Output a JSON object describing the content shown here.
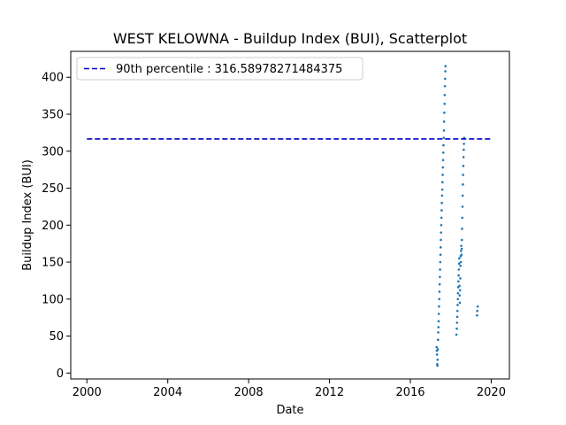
{
  "chart_data": {
    "type": "scatter",
    "title": "WEST KELOWNA - Buildup Index (BUI), Scatterplot",
    "xlabel": "Date",
    "ylabel": "Buildup Index (BUI)",
    "xlim": [
      1999.2,
      2020.9
    ],
    "ylim": [
      -8,
      435
    ],
    "xticks": [
      {
        "value": 2000,
        "label": "2000"
      },
      {
        "value": 2004,
        "label": "2004"
      },
      {
        "value": 2008,
        "label": "2008"
      },
      {
        "value": 2012,
        "label": "2012"
      },
      {
        "value": 2016,
        "label": "2016"
      },
      {
        "value": 2020,
        "label": "2020"
      }
    ],
    "yticks": [
      {
        "value": 0,
        "label": "0"
      },
      {
        "value": 50,
        "label": "50"
      },
      {
        "value": 100,
        "label": "100"
      },
      {
        "value": 150,
        "label": "150"
      },
      {
        "value": 200,
        "label": "200"
      },
      {
        "value": 250,
        "label": "250"
      },
      {
        "value": 300,
        "label": "300"
      },
      {
        "value": 350,
        "label": "350"
      },
      {
        "value": 400,
        "label": "400"
      }
    ],
    "grid": false,
    "legend": {
      "position": "top-left",
      "entries": [
        "90th percentile : 316.58978271484375"
      ]
    },
    "reference_line": {
      "value": 316.58978271484375,
      "x_range": [
        2000,
        2020
      ],
      "color": "#0000cc",
      "style": "dashed"
    },
    "marker_color": "#1f77b4",
    "series": [
      {
        "points": [
          [
            2017.3,
            35
          ],
          [
            2017.31,
            30
          ],
          [
            2017.32,
            25
          ],
          [
            2017.33,
            12
          ],
          [
            2017.34,
            10
          ],
          [
            2017.35,
            18
          ],
          [
            2017.36,
            32
          ],
          [
            2017.37,
            45
          ],
          [
            2017.38,
            55
          ],
          [
            2017.39,
            62
          ],
          [
            2017.4,
            70
          ],
          [
            2017.41,
            80
          ],
          [
            2017.42,
            90
          ],
          [
            2017.43,
            100
          ],
          [
            2017.44,
            110
          ],
          [
            2017.45,
            120
          ],
          [
            2017.46,
            130
          ],
          [
            2017.47,
            140
          ],
          [
            2017.48,
            150
          ],
          [
            2017.49,
            160
          ],
          [
            2017.5,
            170
          ],
          [
            2017.51,
            180
          ],
          [
            2017.52,
            190
          ],
          [
            2017.53,
            200
          ],
          [
            2017.54,
            210
          ],
          [
            2017.55,
            220
          ],
          [
            2017.56,
            230
          ],
          [
            2017.57,
            240
          ],
          [
            2017.58,
            248
          ],
          [
            2017.59,
            258
          ],
          [
            2017.6,
            268
          ],
          [
            2017.61,
            278
          ],
          [
            2017.62,
            288
          ],
          [
            2017.63,
            298
          ],
          [
            2017.64,
            308
          ],
          [
            2017.65,
            318
          ],
          [
            2017.66,
            328
          ],
          [
            2017.67,
            340
          ],
          [
            2017.68,
            352
          ],
          [
            2017.69,
            364
          ],
          [
            2017.7,
            376
          ],
          [
            2017.71,
            388
          ],
          [
            2017.72,
            398
          ],
          [
            2017.73,
            408
          ],
          [
            2017.74,
            415
          ],
          [
            2018.28,
            52
          ],
          [
            2018.3,
            60
          ],
          [
            2018.31,
            68
          ],
          [
            2018.32,
            76
          ],
          [
            2018.33,
            84
          ],
          [
            2018.34,
            92
          ],
          [
            2018.35,
            100
          ],
          [
            2018.36,
            108
          ],
          [
            2018.37,
            116
          ],
          [
            2018.38,
            124
          ],
          [
            2018.39,
            132
          ],
          [
            2018.4,
            140
          ],
          [
            2018.41,
            148
          ],
          [
            2018.42,
            155
          ],
          [
            2018.43,
            118
          ],
          [
            2018.44,
            105
          ],
          [
            2018.45,
            95
          ],
          [
            2018.46,
            112
          ],
          [
            2018.47,
            128
          ],
          [
            2018.48,
            145
          ],
          [
            2018.49,
            158
          ],
          [
            2018.5,
            150
          ],
          [
            2018.51,
            165
          ],
          [
            2018.52,
            172
          ],
          [
            2018.53,
            160
          ],
          [
            2018.54,
            168
          ],
          [
            2018.55,
            180
          ],
          [
            2018.56,
            195
          ],
          [
            2018.57,
            210
          ],
          [
            2018.58,
            225
          ],
          [
            2018.59,
            240
          ],
          [
            2018.6,
            255
          ],
          [
            2018.61,
            268
          ],
          [
            2018.62,
            280
          ],
          [
            2018.63,
            292
          ],
          [
            2018.64,
            302
          ],
          [
            2018.65,
            310
          ],
          [
            2018.66,
            318
          ],
          [
            2019.3,
            78
          ],
          [
            2019.31,
            84
          ],
          [
            2019.33,
            90
          ]
        ]
      }
    ]
  }
}
